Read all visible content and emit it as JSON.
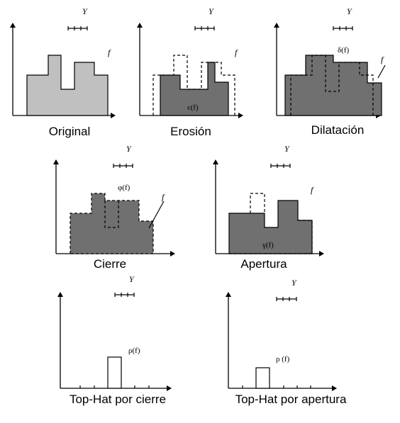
{
  "panels": {
    "original": {
      "caption": "Original",
      "y_symbol": "Y",
      "f_symbol": "f"
    },
    "erosion": {
      "caption": "Erosión",
      "y_symbol": "Y",
      "f_symbol": "f",
      "annotation": "ε(f)"
    },
    "dilation": {
      "caption": "Dilatación",
      "y_symbol": "Y",
      "f_symbol": "f",
      "annotation": "δ(f)"
    },
    "closing": {
      "caption": "Cierre",
      "y_symbol": "Y",
      "f_symbol": "f",
      "annotation": "φ(f)"
    },
    "opening": {
      "caption": "Apertura",
      "y_symbol": "Y",
      "f_symbol": "f",
      "annotation": "γ(f)"
    },
    "tophat_closing": {
      "caption": "Top-Hat por cierre",
      "y_symbol": "Y",
      "annotation": "ρ(f)"
    },
    "tophat_opening": {
      "caption": "Top-Hat por apertura",
      "y_symbol": "Y",
      "annotation": "ρ (f)"
    }
  },
  "colors": {
    "light_fill": "#c0c0c0",
    "dark_fill": "#707070",
    "stroke": "#000000"
  }
}
